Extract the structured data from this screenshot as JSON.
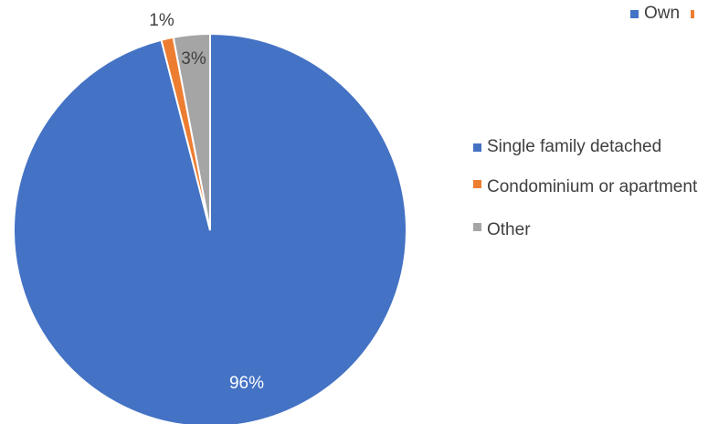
{
  "chart_data": {
    "type": "pie",
    "categories": [
      "Single family detached",
      "Condominium or apartment",
      "Other"
    ],
    "values": [
      96,
      1,
      3
    ],
    "labels": [
      "96%",
      "1%",
      "3%"
    ],
    "colors": [
      "#4472C4",
      "#ED7D31",
      "#A5A5A5"
    ],
    "legend": {
      "placement": "right",
      "items": [
        "Single family detached",
        "Condominium or apartment",
        "Other"
      ]
    },
    "top_legend": {
      "items": [
        "Own"
      ],
      "colors": [
        "#4472C4",
        "#ED7D31"
      ]
    }
  }
}
